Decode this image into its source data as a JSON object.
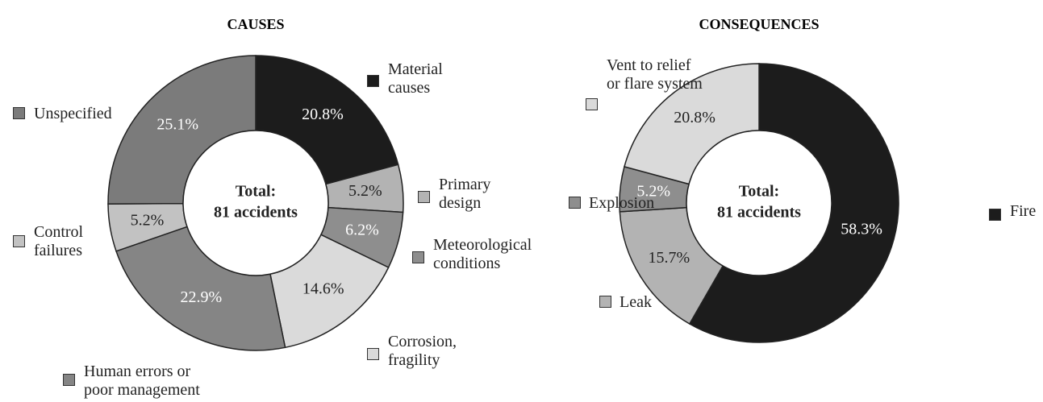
{
  "chart_data": [
    {
      "type": "pie",
      "donut": true,
      "title": "CAUSES",
      "center_text": [
        "Total:",
        "81 accidents"
      ],
      "categories": [
        "Material causes",
        "Primary design",
        "Meteorological conditions",
        "Corrosion, fragility",
        "Human errors or poor management",
        "Control failures",
        "Unspecified"
      ],
      "values": [
        20.8,
        5.2,
        6.2,
        14.6,
        22.9,
        5.2,
        25.1
      ],
      "value_labels": [
        "20.8%",
        "5.2%",
        "6.2%",
        "14.6%",
        "22.9%",
        "5.2%",
        "25.1%"
      ],
      "colors": [
        "#1c1c1c",
        "#b3b3b3",
        "#8e8e8e",
        "#dadada",
        "#858585",
        "#c2c2c2",
        "#7b7b7b"
      ]
    },
    {
      "type": "pie",
      "donut": true,
      "title": "CONSEQUENCES",
      "center_text": [
        "Total:",
        "81 accidents"
      ],
      "categories": [
        "Fire",
        "Leak",
        "Explosion",
        "Vent to relief or flare system"
      ],
      "values": [
        58.3,
        15.7,
        5.2,
        20.8
      ],
      "value_labels": [
        "58.3%",
        "15.7%",
        "5.2%",
        "20.8%"
      ],
      "colors": [
        "#1c1c1c",
        "#b3b3b3",
        "#8e8e8e",
        "#dadada"
      ]
    }
  ]
}
